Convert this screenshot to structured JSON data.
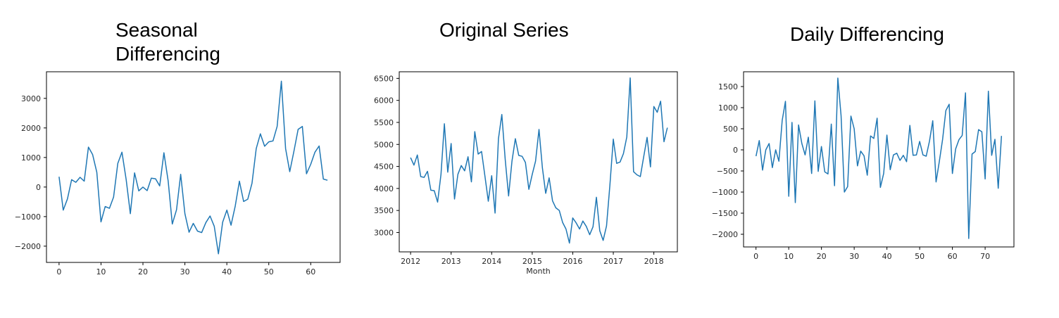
{
  "titles": {
    "left": "Seasonal Differencing",
    "middle": "Original Series",
    "right": "Daily Differencing"
  },
  "colors": {
    "line": "#1f77b4",
    "axes": "#000000",
    "text": "#262626"
  },
  "chart_data": [
    {
      "type": "line",
      "title": "Seasonal Differencing",
      "xlabel": "",
      "ylabel": "",
      "xlim": [
        -3,
        67
      ],
      "ylim": [
        -2550,
        3900
      ],
      "xticks": [
        0,
        10,
        20,
        30,
        40,
        50,
        60
      ],
      "yticks": [
        -2000,
        -1000,
        0,
        1000,
        2000,
        3000
      ],
      "ytick_labels": [
        "−2000",
        "−1000",
        "0",
        "1000",
        "2000",
        "3000"
      ],
      "x": [
        0,
        1,
        2,
        3,
        4,
        5,
        6,
        7,
        8,
        9,
        10,
        11,
        12,
        13,
        14,
        15,
        16,
        17,
        18,
        19,
        20,
        21,
        22,
        23,
        24,
        25,
        26,
        27,
        28,
        29,
        30,
        31,
        32,
        33,
        34,
        35,
        36,
        37,
        38,
        39,
        40,
        41,
        42,
        43,
        44,
        45,
        46,
        47,
        48,
        49,
        50,
        51,
        52,
        53,
        54,
        55,
        56,
        57,
        58,
        59,
        60,
        61,
        62,
        63,
        64
      ],
      "y": [
        350,
        -780,
        -400,
        250,
        160,
        330,
        200,
        1350,
        1100,
        500,
        -1180,
        -660,
        -720,
        -340,
        800,
        1180,
        250,
        -900,
        480,
        -130,
        0,
        -120,
        300,
        280,
        40,
        1160,
        210,
        -1250,
        -770,
        430,
        -900,
        -1530,
        -1230,
        -1490,
        -1540,
        -1200,
        -980,
        -1330,
        -2260,
        -1190,
        -780,
        -1290,
        -640,
        200,
        -490,
        -410,
        130,
        1300,
        1800,
        1380,
        1530,
        1560,
        2050,
        3580,
        1300,
        520,
        1220,
        1950,
        2050,
        450,
        770,
        1180,
        1390,
        270,
        230
      ]
    },
    {
      "type": "line",
      "title": "Original Series",
      "xlabel": "Month",
      "ylabel": "",
      "xlim": [
        2011.72,
        2018.58
      ],
      "ylim": [
        2560,
        6650
      ],
      "xticks": [
        2012,
        2013,
        2014,
        2015,
        2016,
        2017,
        2018
      ],
      "yticks": [
        3000,
        3500,
        4000,
        4500,
        5000,
        5500,
        6000,
        6500
      ],
      "x": [
        2012.0,
        2012.083,
        2012.167,
        2012.25,
        2012.333,
        2012.417,
        2012.5,
        2012.583,
        2012.667,
        2012.75,
        2012.833,
        2012.917,
        2013.0,
        2013.083,
        2013.167,
        2013.25,
        2013.333,
        2013.417,
        2013.5,
        2013.583,
        2013.667,
        2013.75,
        2013.833,
        2013.917,
        2014.0,
        2014.083,
        2014.167,
        2014.25,
        2014.333,
        2014.417,
        2014.5,
        2014.583,
        2014.667,
        2014.75,
        2014.833,
        2014.917,
        2015.0,
        2015.083,
        2015.167,
        2015.25,
        2015.333,
        2015.417,
        2015.5,
        2015.583,
        2015.667,
        2015.75,
        2015.833,
        2015.917,
        2016.0,
        2016.083,
        2016.167,
        2016.25,
        2016.333,
        2016.417,
        2016.5,
        2016.583,
        2016.667,
        2016.75,
        2016.833,
        2016.917,
        2017.0,
        2017.083,
        2017.167,
        2017.25,
        2017.333,
        2017.417,
        2017.5,
        2017.583,
        2017.667,
        2017.75,
        2017.833,
        2017.917,
        2018.0,
        2018.083,
        2018.167,
        2018.25,
        2018.333
      ],
      "y": [
        4700,
        4530,
        4760,
        4270,
        4250,
        4390,
        3960,
        3950,
        3690,
        4320,
        5470,
        4370,
        5020,
        3760,
        4320,
        4520,
        4400,
        4720,
        4150,
        5290,
        4780,
        4840,
        4280,
        3710,
        4290,
        3440,
        5130,
        5680,
        4660,
        3830,
        4620,
        5130,
        4750,
        4730,
        4590,
        3980,
        4320,
        4620,
        5340,
        4470,
        3890,
        4240,
        3720,
        3560,
        3500,
        3230,
        3080,
        2760,
        3330,
        3220,
        3080,
        3260,
        3140,
        2950,
        3130,
        3800,
        3040,
        2820,
        3150,
        4080,
        5120,
        4570,
        4600,
        4790,
        5170,
        6510,
        4380,
        4310,
        4270,
        4720,
        5160,
        4490,
        5860,
        5730,
        5980,
        5060,
        5380
      ]
    },
    {
      "type": "line",
      "title": "Daily Differencing",
      "xlabel": "",
      "ylabel": "",
      "xlim": [
        -3.8,
        78.8
      ],
      "ylim": [
        -2300,
        1850
      ],
      "xticks": [
        0,
        10,
        20,
        30,
        40,
        50,
        60,
        70
      ],
      "yticks": [
        -2000,
        -1500,
        -1000,
        -500,
        0,
        500,
        1000,
        1500
      ],
      "ytick_labels": [
        "−2000",
        "−1500",
        "−1000",
        "−500",
        "0",
        "500",
        "1000",
        "1500"
      ],
      "x": [
        0,
        1,
        2,
        3,
        4,
        5,
        6,
        7,
        8,
        9,
        10,
        11,
        12,
        13,
        14,
        15,
        16,
        17,
        18,
        19,
        20,
        21,
        22,
        23,
        24,
        25,
        26,
        27,
        28,
        29,
        30,
        31,
        32,
        33,
        34,
        35,
        36,
        37,
        38,
        39,
        40,
        41,
        42,
        43,
        44,
        45,
        46,
        47,
        48,
        49,
        50,
        51,
        52,
        53,
        54,
        55,
        56,
        57,
        58,
        59,
        60,
        61,
        62,
        63,
        64,
        65,
        66,
        67,
        68,
        69,
        70,
        71,
        72,
        73,
        74,
        75
      ],
      "y": [
        -150,
        220,
        -480,
        0,
        150,
        -420,
        0,
        -270,
        700,
        1150,
        -1100,
        650,
        -1250,
        590,
        150,
        -120,
        300,
        -560,
        1160,
        -510,
        80,
        -520,
        -570,
        610,
        -850,
        1700,
        810,
        -1000,
        -870,
        800,
        500,
        -380,
        -30,
        -140,
        -600,
        330,
        270,
        750,
        -890,
        -560,
        350,
        -470,
        -120,
        -80,
        -250,
        -130,
        -280,
        580,
        -130,
        -120,
        200,
        -120,
        -150,
        210,
        690,
        -760,
        -280,
        250,
        930,
        1080,
        -560,
        20,
        240,
        340,
        1350,
        -2100,
        -100,
        -40,
        480,
        430,
        -690,
        1390,
        -130,
        250,
        -910,
        330
      ]
    }
  ]
}
